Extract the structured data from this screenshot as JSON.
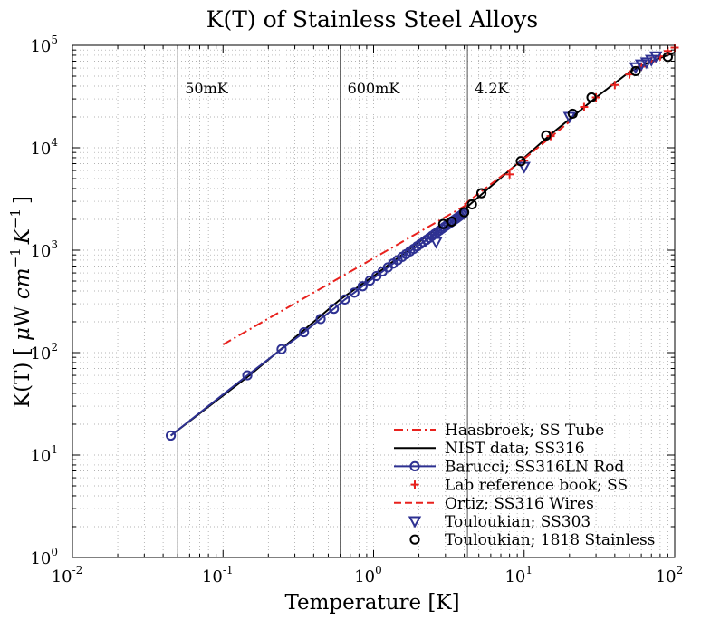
{
  "chart_data": {
    "type": "scatter",
    "title": "K(T) of Stainless Steel Alloys",
    "xlabel": "Temperature [K]",
    "ylabel_prefix": "K(T) [ ",
    "ylabel_mu": "μ",
    "ylabel_W": "W ",
    "ylabel_cm": "cm",
    "ylabel_cm_exp": "−1",
    "ylabel_K": "K",
    "ylabel_K_exp": "−1",
    "ylabel_suffix": "]",
    "x_scale": "log",
    "y_scale": "log",
    "xlim": [
      0.01,
      100
    ],
    "ylim": [
      1,
      100000
    ],
    "grid": true,
    "legend_position": "bottom-right",
    "x_ticks": [
      {
        "base": "10",
        "exp": "-2",
        "value": 0.01
      },
      {
        "base": "10",
        "exp": "-1",
        "value": 0.1
      },
      {
        "base": "10",
        "exp": "0",
        "value": 1
      },
      {
        "base": "10",
        "exp": "1",
        "value": 10
      },
      {
        "base": "10",
        "exp": "2",
        "value": 100
      }
    ],
    "y_ticks": [
      {
        "base": "10",
        "exp": "0",
        "value": 1
      },
      {
        "base": "10",
        "exp": "1",
        "value": 10
      },
      {
        "base": "10",
        "exp": "2",
        "value": 100
      },
      {
        "base": "10",
        "exp": "3",
        "value": 1000
      },
      {
        "base": "10",
        "exp": "4",
        "value": 10000
      },
      {
        "base": "10",
        "exp": "5",
        "value": 100000
      }
    ],
    "reference_lines": [
      {
        "x": 0.05,
        "label": "50mK"
      },
      {
        "x": 0.6,
        "label": "600mK"
      },
      {
        "x": 4.2,
        "label": "4.2K"
      }
    ],
    "series": [
      {
        "name": "Haasbroek; SS Tube",
        "style": "dashdot",
        "color": "#e8211d",
        "x": [
          0.1,
          4.2
        ],
        "y": [
          120,
          2800
        ]
      },
      {
        "name": "NIST data; SS316",
        "style": "line",
        "color": "#000000",
        "x": [
          0.045,
          0.15,
          0.3,
          0.6,
          1,
          2,
          3,
          4,
          6,
          10,
          15,
          20,
          30,
          50,
          70,
          100
        ],
        "y": [
          15.5,
          60,
          140,
          330,
          560,
          1200,
          1900,
          2500,
          4200,
          8000,
          13500,
          19000,
          31000,
          55000,
          70000,
          85000
        ]
      },
      {
        "name": "Barucci; SS316LN Rod",
        "style": "circle-line",
        "color": "#2e3192",
        "x": [
          0.045,
          0.145,
          0.245,
          0.345,
          0.445,
          0.545,
          0.645,
          0.745,
          0.845,
          0.945,
          1.045,
          1.145,
          1.245,
          1.345,
          1.445,
          1.545,
          1.645,
          1.745,
          1.845,
          1.945,
          2.045,
          2.145,
          2.245,
          2.345,
          2.445,
          2.545,
          2.645,
          2.745,
          2.845,
          2.945,
          3.045,
          3.145,
          3.245,
          3.345,
          3.445,
          3.545,
          3.645,
          3.745,
          3.845,
          3.945
        ],
        "y": [
          15.5,
          60,
          108,
          158,
          213,
          268,
          330,
          385,
          445,
          505,
          560,
          620,
          680,
          740,
          800,
          860,
          915,
          975,
          1030,
          1090,
          1150,
          1200,
          1260,
          1320,
          1380,
          1440,
          1500,
          1560,
          1620,
          1680,
          1740,
          1800,
          1860,
          1920,
          1980,
          2040,
          2100,
          2160,
          2220,
          2280
        ]
      },
      {
        "name": "Lab reference book; SS",
        "style": "plus",
        "color": "#e8211d",
        "x": [
          8,
          10,
          15,
          25,
          30,
          40,
          50,
          60,
          70,
          80,
          90,
          100
        ],
        "y": [
          5500,
          7500,
          13000,
          25000,
          31000,
          41000,
          52000,
          62000,
          70000,
          78000,
          88000,
          95000
        ]
      },
      {
        "name": "Ortiz; SS316 Wires",
        "style": "dashed",
        "color": "#e8211d",
        "x": [
          4,
          10,
          20
        ],
        "y": [
          2800,
          7800,
          18000
        ]
      },
      {
        "name": "Touloukian; SS303",
        "style": "triangle",
        "color": "#2e3192",
        "x": [
          2.6,
          10,
          20,
          55,
          60,
          65,
          70,
          75
        ],
        "y": [
          1200,
          6500,
          20000,
          61000,
          65000,
          68000,
          72000,
          78000
        ]
      },
      {
        "name": "Touloukian; 1818 Stainless",
        "style": "circle",
        "color": "#000000",
        "x": [
          2.9,
          3.3,
          4,
          4.5,
          5.2,
          9.5,
          14,
          21,
          28,
          55,
          90
        ],
        "y": [
          1800,
          1900,
          2350,
          2800,
          3600,
          7400,
          13200,
          21500,
          31000,
          56000,
          77000
        ]
      }
    ]
  }
}
